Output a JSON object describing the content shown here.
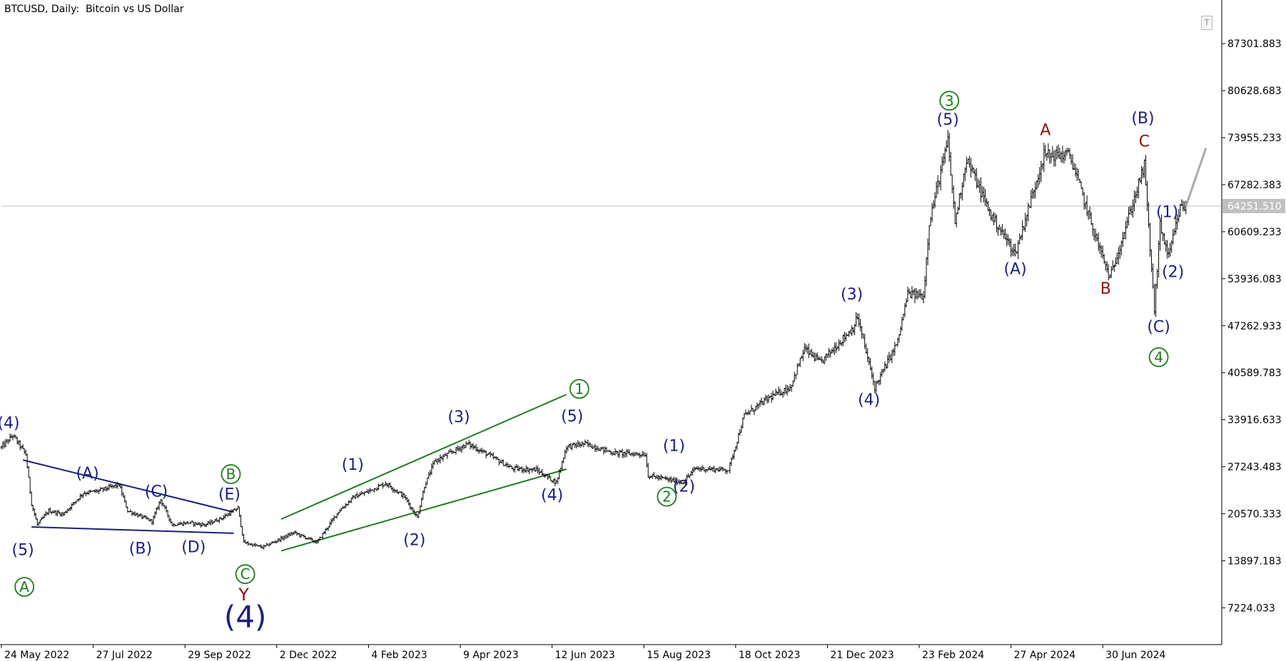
{
  "window": {
    "symbol_title": "BTCUSD, Daily:  Bitcoin vs US Dollar",
    "trade_button": "T"
  },
  "colors": {
    "background": "#ffffff",
    "candles": "#000000",
    "axis": "#000000",
    "price_line": "#c0c0c0",
    "wave_navy": "#1b1f7a",
    "wave_green": "#1e7b1e",
    "wave_red": "#8b1010",
    "projection": "#aaaaaa"
  },
  "chart_data": {
    "type": "candlestick",
    "symbol": "BTCUSD",
    "timeframe": "Daily",
    "ylim": [
      2000,
      93500
    ],
    "x_range": [
      "2022-05-24",
      "2024-09-21"
    ],
    "current_price": "64251.510",
    "price_ticks": [
      "87301.883",
      "80628.683",
      "73955.233",
      "67282.383",
      "60609.233",
      "53936.083",
      "47262.933",
      "40589.783",
      "33916.633",
      "27243.483",
      "20570.333",
      "13897.183",
      "7224.033"
    ],
    "date_ticks": [
      "24 May 2022",
      "27 Jul 2022",
      "29 Sep 2022",
      "2 Dec 2022",
      "4 Feb 2023",
      "9 Apr 2023",
      "12 Jun 2023",
      "15 Aug 2023",
      "18 Oct 2023",
      "21 Dec 2023",
      "23 Feb 2024",
      "27 Apr 2024",
      "30 Jun 2024"
    ],
    "price_path": [
      [
        "2022-05-24",
        30000
      ],
      [
        "2022-06-01",
        31700
      ],
      [
        "2022-06-10",
        29000
      ],
      [
        "2022-06-14",
        22000
      ],
      [
        "2022-06-18",
        19000
      ],
      [
        "2022-06-26",
        21000
      ],
      [
        "2022-07-06",
        20500
      ],
      [
        "2022-07-20",
        23500
      ],
      [
        "2022-07-30",
        23800
      ],
      [
        "2022-08-14",
        24700
      ],
      [
        "2022-08-20",
        21000
      ],
      [
        "2022-09-06",
        19500
      ],
      [
        "2022-09-12",
        22600
      ],
      [
        "2022-09-20",
        19000
      ],
      [
        "2022-10-01",
        19300
      ],
      [
        "2022-10-13",
        19000
      ],
      [
        "2022-10-25",
        20000
      ],
      [
        "2022-11-05",
        21400
      ],
      [
        "2022-11-09",
        16500
      ],
      [
        "2022-11-22",
        15800
      ],
      [
        "2022-12-14",
        17900
      ],
      [
        "2022-12-30",
        16500
      ],
      [
        "2023-01-14",
        20900
      ],
      [
        "2023-01-25",
        23000
      ],
      [
        "2023-02-01",
        23500
      ],
      [
        "2023-02-16",
        24900
      ],
      [
        "2023-03-01",
        23000
      ],
      [
        "2023-03-10",
        20000
      ],
      [
        "2023-03-15",
        24500
      ],
      [
        "2023-03-22",
        28000
      ],
      [
        "2023-04-14",
        30500
      ],
      [
        "2023-04-28",
        29000
      ],
      [
        "2023-05-15",
        27000
      ],
      [
        "2023-06-01",
        26800
      ],
      [
        "2023-06-15",
        25000
      ],
      [
        "2023-06-22",
        30100
      ],
      [
        "2023-07-05",
        30500
      ],
      [
        "2023-07-25",
        29200
      ],
      [
        "2023-08-16",
        29000
      ],
      [
        "2023-08-18",
        26000
      ],
      [
        "2023-09-11",
        25000
      ],
      [
        "2023-09-20",
        27000
      ],
      [
        "2023-10-13",
        26800
      ],
      [
        "2023-10-24",
        34500
      ],
      [
        "2023-11-10",
        37000
      ],
      [
        "2023-11-25",
        38500
      ],
      [
        "2023-12-05",
        44000
      ],
      [
        "2023-12-16",
        42000
      ],
      [
        "2024-01-08",
        47000
      ],
      [
        "2024-01-11",
        48500
      ],
      [
        "2024-01-23",
        38500
      ],
      [
        "2024-02-08",
        45000
      ],
      [
        "2024-02-15",
        51800
      ],
      [
        "2024-02-26",
        51500
      ],
      [
        "2024-03-01",
        62000
      ],
      [
        "2024-03-14",
        73500
      ],
      [
        "2024-03-19",
        62000
      ],
      [
        "2024-03-27",
        71000
      ],
      [
        "2024-04-13",
        63000
      ],
      [
        "2024-04-30",
        57500
      ],
      [
        "2024-05-20",
        71500
      ],
      [
        "2024-06-07",
        71500
      ],
      [
        "2024-06-24",
        60500
      ],
      [
        "2024-07-05",
        54000
      ],
      [
        "2024-07-14",
        60000
      ],
      [
        "2024-07-29",
        70000
      ],
      [
        "2024-08-05",
        49500
      ],
      [
        "2024-08-09",
        61500
      ],
      [
        "2024-08-15",
        57000
      ],
      [
        "2024-08-23",
        64000
      ],
      [
        "2024-08-27",
        64251
      ]
    ],
    "projection": [
      [
        "2024-08-27",
        64251
      ],
      [
        "2024-09-10",
        72500
      ]
    ],
    "trendlines": [
      {
        "name": "triangle-upper",
        "color": "navy",
        "from": [
          "2022-06-08",
          28200
        ],
        "to": [
          "2022-11-02",
          20800
        ]
      },
      {
        "name": "triangle-lower",
        "color": "navy",
        "from": [
          "2022-06-14",
          18700
        ],
        "to": [
          "2022-11-02",
          17800
        ]
      },
      {
        "name": "wedge-upper",
        "color": "green",
        "from": [
          "2022-12-05",
          19800
        ],
        "to": [
          "2023-06-22",
          37500
        ]
      },
      {
        "name": "wedge-lower",
        "color": "green",
        "from": [
          "2022-12-05",
          15300
        ],
        "to": [
          "2023-06-22",
          26900
        ]
      }
    ],
    "wave_labels": [
      {
        "text": "(4)",
        "date": "2022-05-29",
        "price": 32700,
        "color": "navy",
        "circled": false,
        "size": 22
      },
      {
        "text": "(5)",
        "date": "2022-06-08",
        "price": 14700,
        "color": "navy",
        "circled": false,
        "size": 22
      },
      {
        "text": "A",
        "date": "2022-06-09",
        "price": 10200,
        "color": "green",
        "circled": true,
        "size": 20
      },
      {
        "text": "(A)",
        "date": "2022-07-23",
        "price": 25600,
        "color": "navy",
        "circled": false,
        "size": 22
      },
      {
        "text": "(C)",
        "date": "2022-09-09",
        "price": 23000,
        "color": "navy",
        "circled": false,
        "size": 22
      },
      {
        "text": "(B)",
        "date": "2022-08-29",
        "price": 14900,
        "color": "navy",
        "circled": false,
        "size": 22
      },
      {
        "text": "(D)",
        "date": "2022-10-05",
        "price": 15100,
        "color": "navy",
        "circled": false,
        "size": 22
      },
      {
        "text": "B",
        "date": "2022-10-31",
        "price": 26200,
        "color": "green",
        "circled": true,
        "size": 20
      },
      {
        "text": "(E)",
        "date": "2022-10-30",
        "price": 22600,
        "color": "navy",
        "circled": false,
        "size": 22
      },
      {
        "text": "C",
        "date": "2022-11-10",
        "price": 12000,
        "color": "green",
        "circled": true,
        "size": 20
      },
      {
        "text": "Y",
        "date": "2022-11-09",
        "price": 8300,
        "color": "red",
        "circled": false,
        "size": 24
      },
      {
        "text": "(4)",
        "date": "2022-11-10",
        "price": 4500,
        "color": "navy",
        "circled": false,
        "size": 42
      },
      {
        "text": "(1)",
        "date": "2023-01-24",
        "price": 26800,
        "color": "navy",
        "circled": false,
        "size": 22
      },
      {
        "text": "(2)",
        "date": "2023-03-08",
        "price": 16100,
        "color": "navy",
        "circled": false,
        "size": 22
      },
      {
        "text": "(3)",
        "date": "2023-04-08",
        "price": 33600,
        "color": "navy",
        "circled": false,
        "size": 22
      },
      {
        "text": "(4)",
        "date": "2023-06-12",
        "price": 22500,
        "color": "navy",
        "circled": false,
        "size": 22
      },
      {
        "text": "(5)",
        "date": "2023-06-26",
        "price": 33700,
        "color": "navy",
        "circled": false,
        "size": 22
      },
      {
        "text": "1",
        "date": "2023-07-01",
        "price": 38300,
        "color": "green",
        "circled": true,
        "size": 20
      },
      {
        "text": "(1)",
        "date": "2023-09-05",
        "price": 29500,
        "color": "navy",
        "circled": false,
        "size": 22
      },
      {
        "text": "2",
        "date": "2023-08-31",
        "price": 23000,
        "color": "green",
        "circled": true,
        "size": 20
      },
      {
        "text": "(2)",
        "date": "2023-09-12",
        "price": 23700,
        "color": "navy",
        "circled": false,
        "size": 22
      },
      {
        "text": "(3)",
        "date": "2024-01-07",
        "price": 51000,
        "color": "navy",
        "circled": false,
        "size": 22
      },
      {
        "text": "(4)",
        "date": "2024-01-19",
        "price": 36000,
        "color": "navy",
        "circled": false,
        "size": 22
      },
      {
        "text": "3",
        "date": "2024-03-15",
        "price": 79200,
        "color": "green",
        "circled": true,
        "size": 20
      },
      {
        "text": "(5)",
        "date": "2024-03-14",
        "price": 75800,
        "color": "navy",
        "circled": false,
        "size": 22
      },
      {
        "text": "(A)",
        "date": "2024-04-30",
        "price": 54600,
        "color": "navy",
        "circled": false,
        "size": 22
      },
      {
        "text": "A",
        "date": "2024-05-21",
        "price": 74300,
        "color": "red",
        "circled": false,
        "size": 22
      },
      {
        "text": "B",
        "date": "2024-07-02",
        "price": 51800,
        "color": "red",
        "circled": false,
        "size": 22
      },
      {
        "text": "(B)",
        "date": "2024-07-28",
        "price": 76000,
        "color": "navy",
        "circled": false,
        "size": 22
      },
      {
        "text": "C",
        "date": "2024-07-29",
        "price": 72700,
        "color": "red",
        "circled": false,
        "size": 22
      },
      {
        "text": "(1)",
        "date": "2024-08-14",
        "price": 62700,
        "color": "navy",
        "circled": false,
        "size": 22
      },
      {
        "text": "(2)",
        "date": "2024-08-18",
        "price": 54200,
        "color": "navy",
        "circled": false,
        "size": 22
      },
      {
        "text": "(C)",
        "date": "2024-08-08",
        "price": 46400,
        "color": "navy",
        "circled": false,
        "size": 22
      },
      {
        "text": "4",
        "date": "2024-08-08",
        "price": 42800,
        "color": "green",
        "circled": true,
        "size": 20
      }
    ]
  }
}
